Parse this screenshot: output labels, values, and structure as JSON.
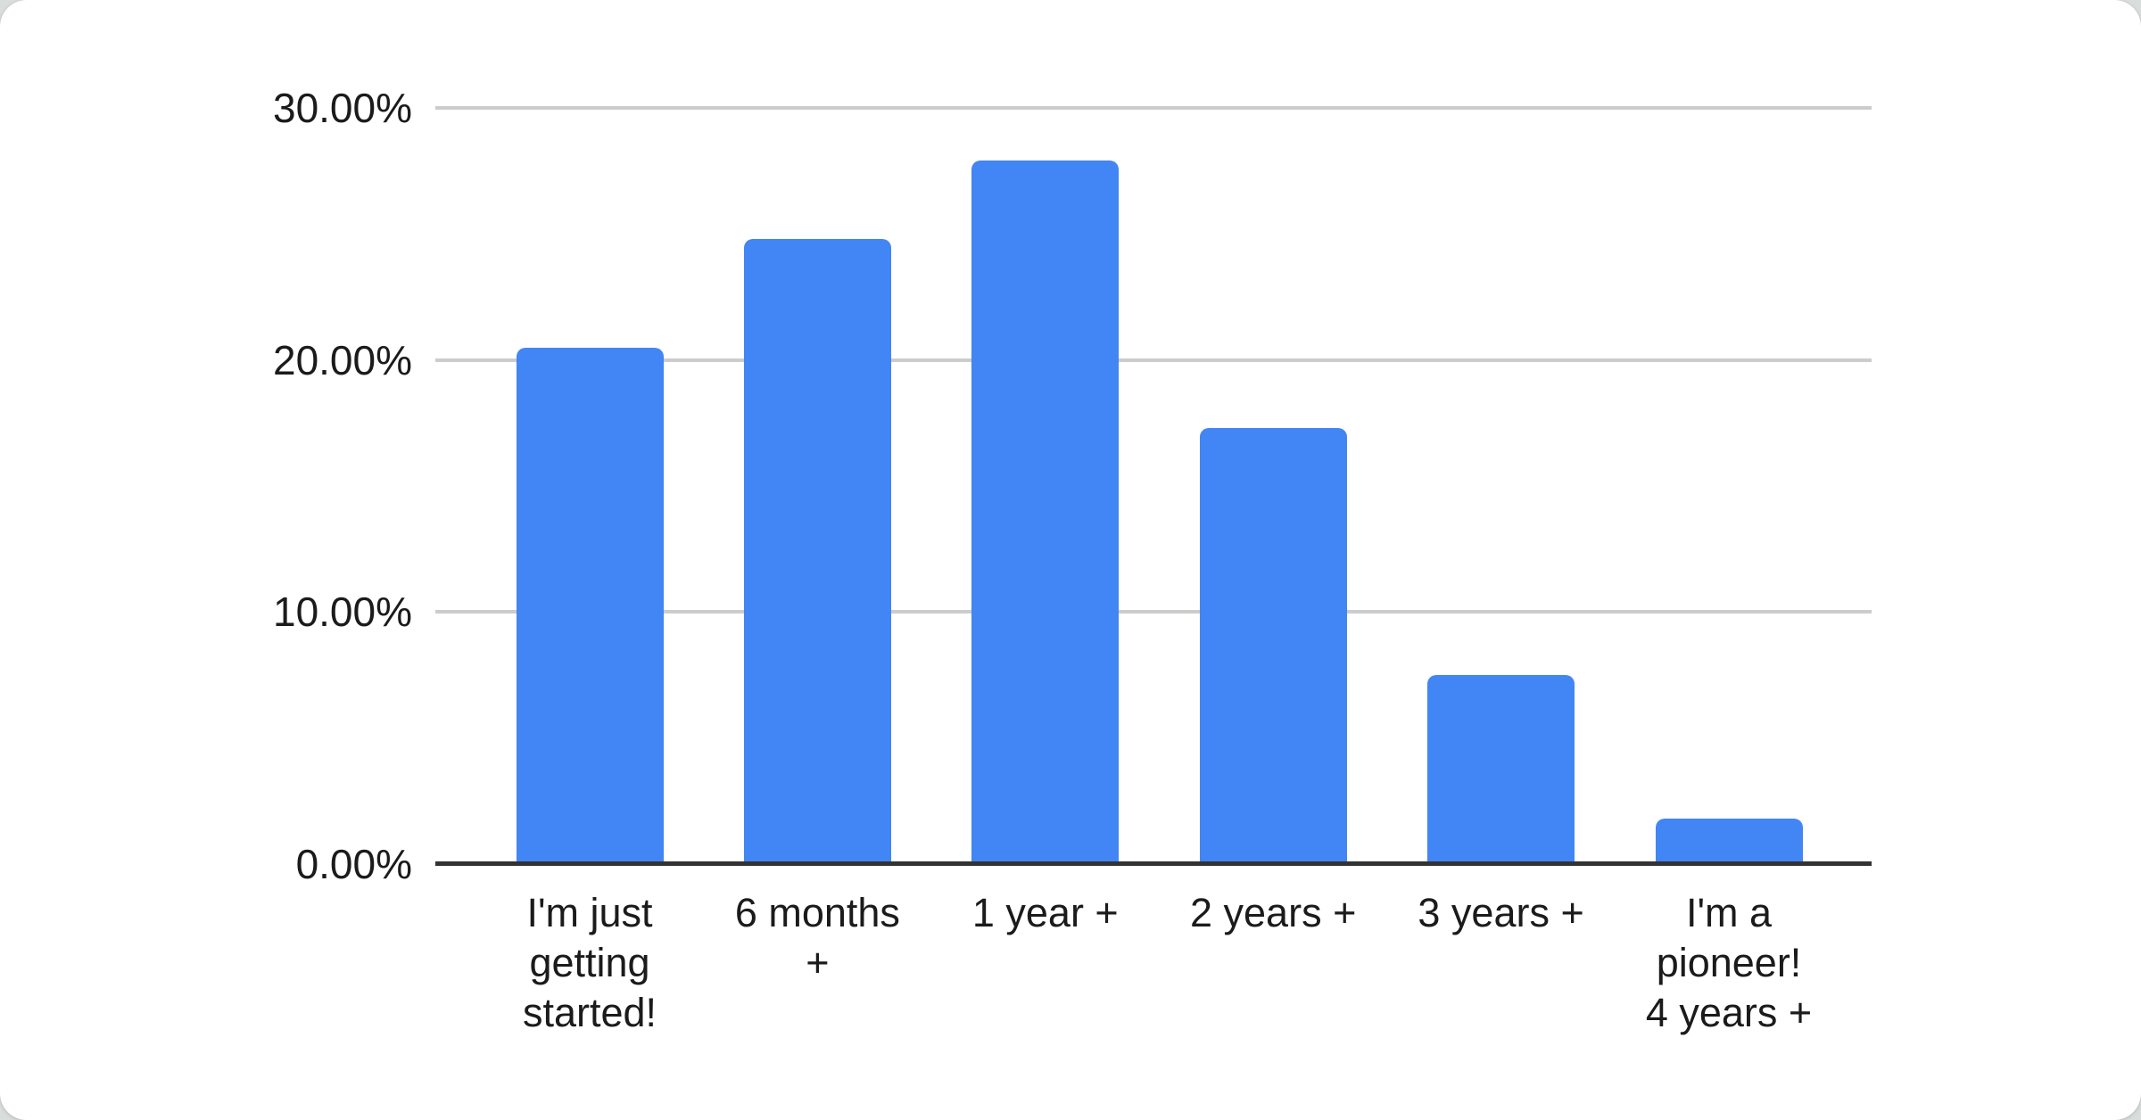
{
  "page": {
    "background_color": "#d9dedc",
    "card_background": "#ffffff"
  },
  "chart_data": {
    "type": "bar",
    "title": "",
    "xlabel": "",
    "ylabel": "",
    "categories": [
      "I'm just getting started!",
      "6 months +",
      "1 year +",
      "2 years +",
      "3 years +",
      "I'm a pioneer! 4 years +"
    ],
    "category_lines": [
      [
        "I'm just",
        "getting",
        "started!"
      ],
      [
        "6 months",
        "+"
      ],
      [
        "1 year +"
      ],
      [
        "2 years +"
      ],
      [
        "3 years +"
      ],
      [
        "I'm a",
        "pioneer!",
        "4 years +"
      ]
    ],
    "values": [
      20.5,
      24.8,
      27.9,
      17.3,
      7.5,
      1.8
    ],
    "unit": "%",
    "ylim": [
      0,
      30
    ],
    "ytick_values": [
      0,
      10,
      20,
      30
    ],
    "yticks": [
      "0.00%",
      "10.00%",
      "20.00%",
      "30.00%"
    ],
    "grid": true,
    "legend": false,
    "bar_color": "#4285f4",
    "gridline_color": "#cccccc",
    "axis_line_color": "#333333",
    "label_color": "#1b1b1b"
  }
}
